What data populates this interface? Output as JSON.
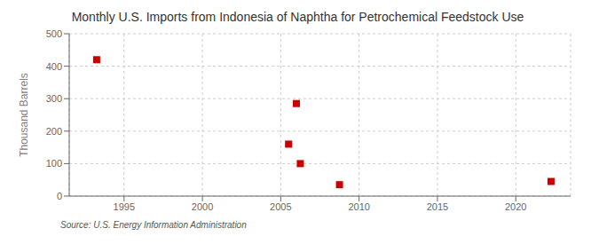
{
  "chart_data": {
    "type": "scatter",
    "title": "Monthly U.S. Imports from Indonesia of Naphtha for Petrochemical Feedstock Use",
    "ylabel": "Thousand Barrels",
    "annotation": "Source: U.S. Energy Information Administration",
    "x": [
      1993.25,
      2005.5,
      2006.0,
      2006.25,
      2008.75,
      2022.25
    ],
    "values": [
      420,
      160,
      285,
      100,
      35,
      45
    ],
    "color": "#cc0000",
    "marker": "square",
    "xlim": [
      1991.5,
      2023.5
    ],
    "ylim": [
      0,
      500
    ],
    "xticks": [
      1995,
      2000,
      2005,
      2010,
      2015,
      2020
    ],
    "yticks": [
      0,
      100,
      200,
      300,
      400,
      500
    ],
    "grid": true
  }
}
